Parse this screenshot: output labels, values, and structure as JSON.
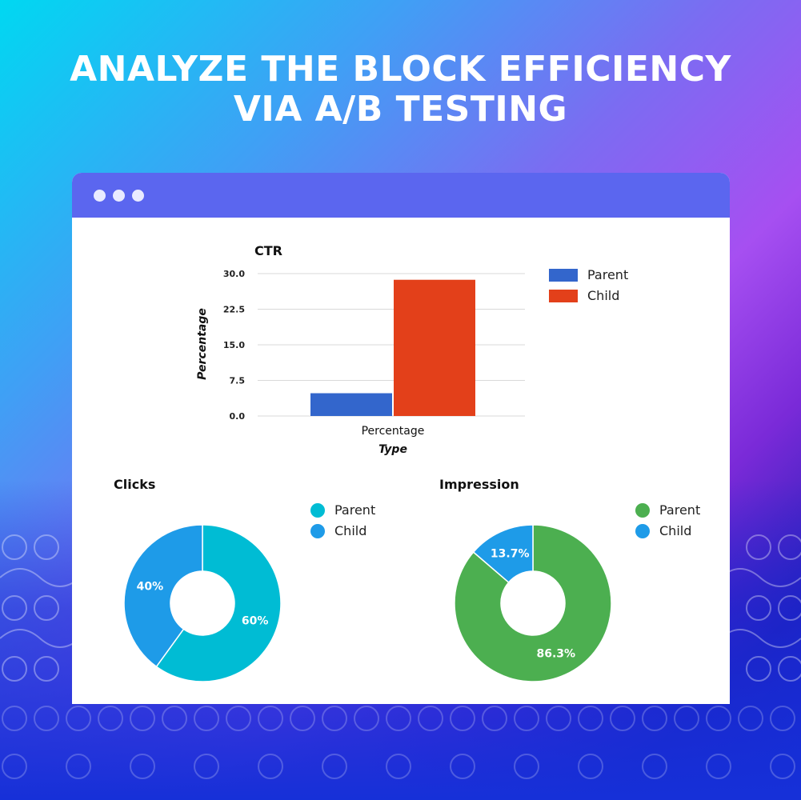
{
  "headline": {
    "line1": "ANALYZE THE BLOCK EFFICIENCY",
    "line2": "VIA A/B TESTING"
  },
  "colors": {
    "titlebar": "#5b66ef",
    "parent_bar": "#3366cc",
    "child_bar": "#e3401a",
    "clicks_parent": "#00bcd4",
    "clicks_child": "#1e9be8",
    "impression_parent": "#4caf50",
    "impression_child": "#1e9be8"
  },
  "chart_data": [
    {
      "type": "bar",
      "title": "CTR",
      "xlabel": "Type",
      "ylabel": "Percentage",
      "categories": [
        "Percentage"
      ],
      "series": [
        {
          "name": "Parent",
          "values": [
            4.8
          ]
        },
        {
          "name": "Child",
          "values": [
            28.7
          ]
        }
      ],
      "ylim": [
        0,
        30
      ],
      "yticks": [
        "0.0",
        "7.5",
        "15.0",
        "22.5",
        "30.0"
      ],
      "grid": true,
      "legend": "right"
    },
    {
      "type": "pie",
      "title": "Clicks",
      "donut": true,
      "slices": [
        {
          "name": "Parent",
          "value": 60,
          "label": "60%"
        },
        {
          "name": "Child",
          "value": 40,
          "label": "40%"
        }
      ],
      "legend": "right"
    },
    {
      "type": "pie",
      "title": "Impression",
      "donut": true,
      "slices": [
        {
          "name": "Parent",
          "value": 86.3,
          "label": "86.3%"
        },
        {
          "name": "Child",
          "value": 13.7,
          "label": "13.7%"
        }
      ],
      "legend": "right"
    }
  ]
}
